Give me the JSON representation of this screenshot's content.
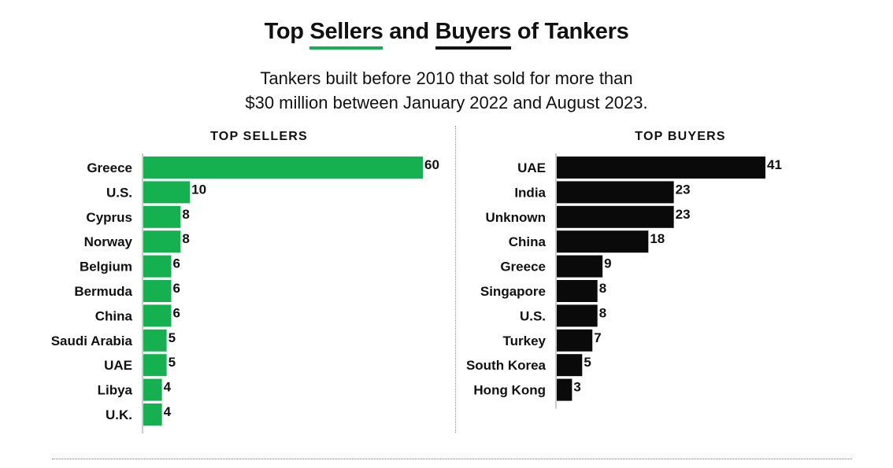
{
  "title": {
    "prefix": "Top ",
    "word1": "Sellers",
    "middle": " and ",
    "word2": "Buyers",
    "suffix": " of Tankers"
  },
  "subtitle": {
    "line1": "Tankers built before 2010 that sold for more than",
    "line2": "$30 million between January 2022 and August 2023."
  },
  "colors": {
    "sellers": "#15b050",
    "buyers": "#0a0a0a",
    "axis": "#999999"
  },
  "chart_data": [
    {
      "type": "bar",
      "orientation": "horizontal",
      "title": "TOP SELLERS",
      "categories": [
        "Greece",
        "U.S.",
        "Cyprus",
        "Norway",
        "Belgium",
        "Bermuda",
        "China",
        "Saudi Arabia",
        "UAE",
        "Libya",
        "U.K."
      ],
      "values": [
        60,
        10,
        8,
        8,
        6,
        6,
        6,
        5,
        5,
        4,
        4
      ],
      "xlim": [
        0,
        60
      ],
      "color": "#15b050"
    },
    {
      "type": "bar",
      "orientation": "horizontal",
      "title": "TOP BUYERS",
      "categories": [
        "UAE",
        "India",
        "Unknown",
        "China",
        "Greece",
        "Singapore",
        "U.S.",
        "Turkey",
        "South Korea",
        "Hong Kong"
      ],
      "values": [
        41,
        23,
        23,
        18,
        9,
        8,
        8,
        7,
        5,
        3
      ],
      "xlim": [
        0,
        41
      ],
      "color": "#0a0a0a"
    }
  ]
}
